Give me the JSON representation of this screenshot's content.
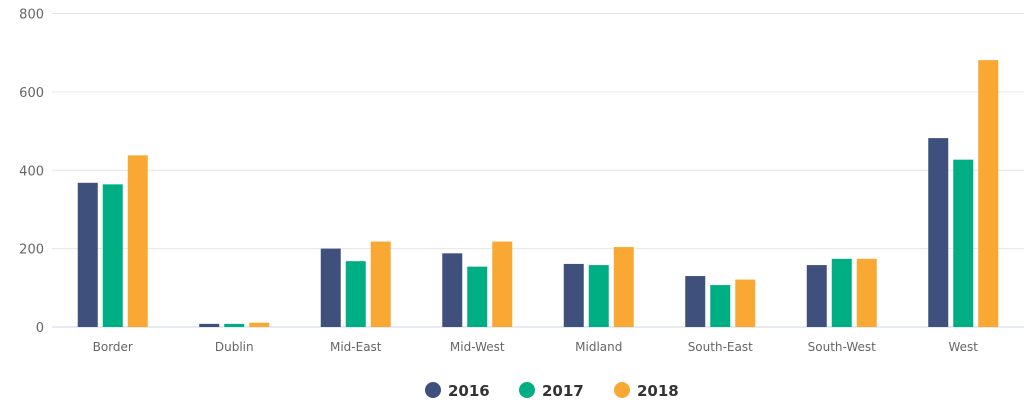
{
  "chart_data": {
    "type": "bar",
    "categories": [
      "Border",
      "Dublin",
      "Mid-East",
      "Mid-West",
      "Midland",
      "South-East",
      "South-West",
      "West"
    ],
    "series": [
      {
        "name": "2016",
        "color": "#3f507d",
        "values": [
          368,
          8,
          200,
          188,
          161,
          130,
          158,
          482
        ]
      },
      {
        "name": "2017",
        "color": "#00ae84",
        "values": [
          364,
          8,
          168,
          154,
          158,
          107,
          174,
          427
        ]
      },
      {
        "name": "2018",
        "color": "#f9a833",
        "values": [
          438,
          11,
          218,
          218,
          204,
          121,
          174,
          681
        ]
      }
    ],
    "ylim": [
      0,
      800
    ],
    "yticks": [
      "0",
      "200",
      "400",
      "600",
      "800"
    ],
    "grid": true,
    "legend": "bottom-center"
  }
}
